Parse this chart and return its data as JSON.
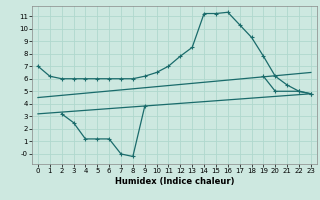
{
  "xlabel": "Humidex (Indice chaleur)",
  "xlim": [
    -0.5,
    23.5
  ],
  "ylim": [
    -0.8,
    11.8
  ],
  "xticks": [
    0,
    1,
    2,
    3,
    4,
    5,
    6,
    7,
    8,
    9,
    10,
    11,
    12,
    13,
    14,
    15,
    16,
    17,
    18,
    19,
    20,
    21,
    22,
    23
  ],
  "yticks": [
    0,
    1,
    2,
    3,
    4,
    5,
    6,
    7,
    8,
    9,
    10,
    11
  ],
  "bg_color": "#cde8e0",
  "grid_color": "#b0d8ce",
  "line_color": "#1a6b6b",
  "series": {
    "line1_x": [
      0,
      1,
      2,
      3,
      4,
      5,
      6,
      7,
      8,
      9,
      10,
      11,
      12,
      13,
      14,
      15,
      16,
      17,
      18,
      19,
      20,
      21,
      22,
      23
    ],
    "line1_y": [
      7.0,
      6.2,
      6.0,
      6.0,
      6.0,
      6.0,
      6.0,
      6.0,
      6.0,
      6.2,
      6.5,
      7.0,
      7.8,
      8.5,
      11.2,
      11.2,
      11.3,
      10.3,
      9.3,
      7.8,
      6.2,
      5.5,
      5.0,
      4.8
    ],
    "line2_x": [
      2,
      3,
      4,
      5,
      6,
      7,
      8,
      9,
      19,
      20,
      22,
      23
    ],
    "line2_y": [
      3.2,
      2.5,
      1.2,
      1.2,
      1.2,
      0.0,
      -0.2,
      3.8,
      6.2,
      5.0,
      5.0,
      4.8
    ],
    "line2_breaks": [
      9,
      19
    ],
    "line3_x": [
      0,
      23
    ],
    "line3_y": [
      3.2,
      4.8
    ],
    "line4_x": [
      0,
      23
    ],
    "line4_y": [
      4.5,
      6.5
    ]
  }
}
